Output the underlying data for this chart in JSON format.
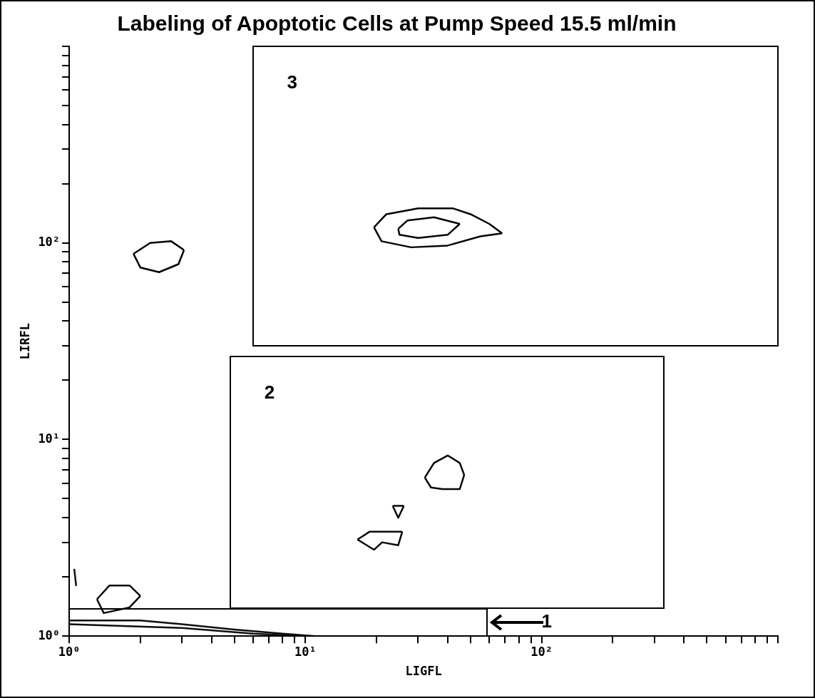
{
  "chart_data": {
    "type": "line",
    "title": "Labeling of Apoptotic Cells at Pump Speed 15.5 ml/min",
    "xlabel": "LIGFL",
    "ylabel": "LIRFL",
    "log": "xy",
    "grid": false,
    "legend": false,
    "marker": "none",
    "line_style": "solid",
    "xlim": [
      1,
      1000
    ],
    "ylim": [
      1,
      1000
    ],
    "xticks": [
      {
        "value": 1,
        "label": "10⁰"
      },
      {
        "value": 2,
        "label": null
      },
      {
        "value": 3,
        "label": null
      },
      {
        "value": 4,
        "label": null
      },
      {
        "value": 5,
        "label": null
      },
      {
        "value": 6,
        "label": null
      },
      {
        "value": 7,
        "label": null
      },
      {
        "value": 8,
        "label": null
      },
      {
        "value": 9,
        "label": null
      },
      {
        "value": 10,
        "label": "10¹"
      },
      {
        "value": 20,
        "label": null
      },
      {
        "value": 30,
        "label": null
      },
      {
        "value": 40,
        "label": null
      },
      {
        "value": 50,
        "label": null
      },
      {
        "value": 60,
        "label": null
      },
      {
        "value": 70,
        "label": null
      },
      {
        "value": 80,
        "label": null
      },
      {
        "value": 90,
        "label": null
      },
      {
        "value": 100,
        "label": "10²"
      },
      {
        "value": 200,
        "label": null
      },
      {
        "value": 300,
        "label": null
      },
      {
        "value": 400,
        "label": null
      },
      {
        "value": 500,
        "label": null
      },
      {
        "value": 600,
        "label": null
      },
      {
        "value": 700,
        "label": null
      },
      {
        "value": 800,
        "label": null
      },
      {
        "value": 900,
        "label": null
      },
      {
        "value": 1000,
        "label": null
      }
    ],
    "yticks": [
      {
        "value": 1,
        "label": "10⁰"
      },
      {
        "value": 2,
        "label": null
      },
      {
        "value": 3,
        "label": null
      },
      {
        "value": 4,
        "label": null
      },
      {
        "value": 5,
        "label": null
      },
      {
        "value": 6,
        "label": null
      },
      {
        "value": 7,
        "label": null
      },
      {
        "value": 8,
        "label": null
      },
      {
        "value": 9,
        "label": null
      },
      {
        "value": 10,
        "label": "10¹"
      },
      {
        "value": 20,
        "label": null
      },
      {
        "value": 30,
        "label": null
      },
      {
        "value": 40,
        "label": null
      },
      {
        "value": 50,
        "label": null
      },
      {
        "value": 60,
        "label": null
      },
      {
        "value": 70,
        "label": null
      },
      {
        "value": 80,
        "label": null
      },
      {
        "value": 90,
        "label": null
      },
      {
        "value": 100,
        "label": "10²"
      },
      {
        "value": 200,
        "label": null
      },
      {
        "value": 300,
        "label": null
      },
      {
        "value": 400,
        "label": null
      },
      {
        "value": 500,
        "label": null
      },
      {
        "value": 600,
        "label": null
      },
      {
        "value": 700,
        "label": null
      },
      {
        "value": 800,
        "label": null
      },
      {
        "value": 900,
        "label": null
      },
      {
        "value": 1000,
        "label": null
      }
    ],
    "series": [
      {
        "color": "#000000",
        "x": [
          1.87,
          2.2,
          2.7,
          3.06
        ],
        "values": [
          88,
          100,
          102,
          92
        ]
      },
      {
        "color": "#010101",
        "x": [
          1.87,
          2,
          2.4,
          2.9,
          3.06
        ],
        "values": [
          88,
          75,
          71,
          78,
          92
        ]
      },
      {
        "color": "#020202",
        "x": [
          19.5,
          22,
          30,
          42,
          50,
          60,
          68
        ],
        "values": [
          120,
          140,
          150,
          150,
          140,
          125,
          112
        ]
      },
      {
        "color": "#030303",
        "x": [
          19.5,
          21,
          28,
          40,
          55,
          68
        ],
        "values": [
          120,
          102,
          95,
          97,
          108,
          112
        ]
      },
      {
        "color": "#040404",
        "x": [
          24.7,
          27,
          35,
          45
        ],
        "values": [
          118,
          130,
          135,
          125
        ]
      },
      {
        "color": "#050505",
        "x": [
          24.7,
          25,
          30,
          40,
          45
        ],
        "values": [
          118,
          110,
          106,
          110,
          125
        ]
      },
      {
        "color": "#060606",
        "x": [
          32,
          35,
          40,
          45,
          47
        ],
        "values": [
          6.4,
          7.6,
          8.3,
          7.6,
          6.6
        ]
      },
      {
        "color": "#070707",
        "x": [
          32,
          34,
          38,
          45,
          47
        ],
        "values": [
          6.4,
          5.7,
          5.6,
          5.6,
          6.6
        ]
      },
      {
        "color": "#080808",
        "x": [
          23.4,
          26.1
        ],
        "values": [
          4.6,
          4.6
        ]
      },
      {
        "color": "#090909",
        "x": [
          23.4,
          24.7,
          26.1
        ],
        "values": [
          4.6,
          4,
          4.6
        ]
      },
      {
        "color": "#0a0a0a",
        "x": [
          16.6,
          18.7,
          25.7
        ],
        "values": [
          3.1,
          3.4,
          3.4
        ]
      },
      {
        "color": "#0b0b0b",
        "x": [
          16.6,
          19.5,
          21.1,
          24.7,
          25.7
        ],
        "values": [
          3.1,
          2.75,
          3,
          2.9,
          3.4
        ]
      },
      {
        "color": "#0c0c0c",
        "x": [
          1.31,
          1.48,
          1.8,
          2
        ],
        "values": [
          1.54,
          1.81,
          1.81,
          1.6
        ]
      },
      {
        "color": "#0d0d0d",
        "x": [
          1.31,
          1.4,
          1.8,
          2
        ],
        "values": [
          1.54,
          1.31,
          1.4,
          1.6
        ]
      },
      {
        "color": "#0e0e0e",
        "x": [
          1,
          2,
          3,
          5,
          8,
          11
        ],
        "values": [
          1.2,
          1.2,
          1.15,
          1.08,
          1.03,
          1
        ]
      },
      {
        "color": "#0f0f0f",
        "x": [
          1,
          3,
          6,
          10
        ],
        "values": [
          1.15,
          1.1,
          1.03,
          1
        ]
      },
      {
        "color": "#101010",
        "x": [
          1.05,
          1.07
        ],
        "values": [
          2.2,
          1.8
        ]
      }
    ],
    "annotations": [
      "1",
      "2",
      "3"
    ]
  }
}
